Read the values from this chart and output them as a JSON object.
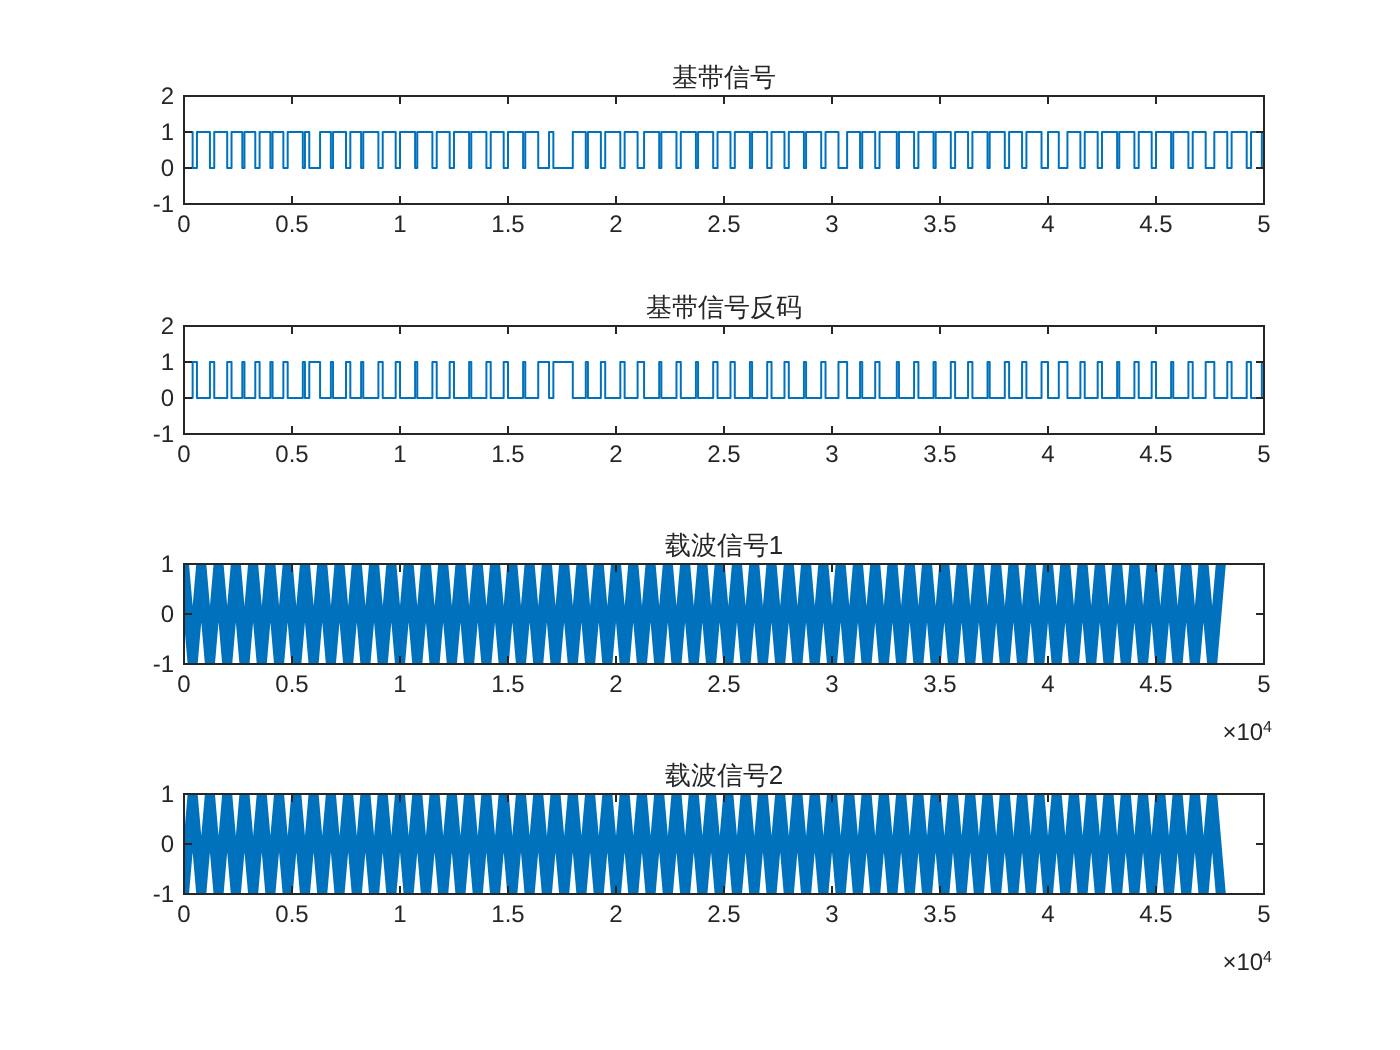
{
  "chart_data": [
    {
      "type": "step",
      "title": "基带信号",
      "xlim": [
        0,
        5
      ],
      "ylim": [
        -1,
        2
      ],
      "xticks": [
        0,
        0.5,
        1,
        1.5,
        2,
        2.5,
        3,
        3.5,
        4,
        4.5,
        5
      ],
      "yticks": [
        -1,
        0,
        1,
        2
      ],
      "x": [
        0,
        0.04,
        0.06,
        0.12,
        0.14,
        0.2,
        0.22,
        0.27,
        0.28,
        0.33,
        0.35,
        0.4,
        0.41,
        0.46,
        0.48,
        0.55,
        0.56,
        0.58,
        0.63,
        0.68,
        0.69,
        0.75,
        0.77,
        0.82,
        0.83,
        0.9,
        0.92,
        0.98,
        1.0,
        1.07,
        1.08,
        1.15,
        1.17,
        1.23,
        1.25,
        1.32,
        1.33,
        1.4,
        1.42,
        1.48,
        1.5,
        1.57,
        1.58,
        1.64,
        1.69,
        1.71,
        1.8,
        1.86,
        1.87,
        1.93,
        1.95,
        2.02,
        2.04,
        2.1,
        2.13,
        2.2,
        2.21,
        2.28,
        2.3,
        2.37,
        2.38,
        2.45,
        2.47,
        2.53,
        2.55,
        2.62,
        2.63,
        2.7,
        2.72,
        2.78,
        2.8,
        2.87,
        2.88,
        2.95,
        2.97,
        3.03,
        3.07,
        3.13,
        3.14,
        3.2,
        3.22,
        3.3,
        3.31,
        3.38,
        3.4,
        3.47,
        3.48,
        3.55,
        3.57,
        3.63,
        3.65,
        3.72,
        3.73,
        3.8,
        3.82,
        3.88,
        3.9,
        3.97,
        4.0,
        4.05,
        4.09,
        4.15,
        4.17,
        4.23,
        4.25,
        4.32,
        4.33,
        4.4,
        4.42,
        4.48,
        4.5,
        4.57,
        4.58,
        4.65,
        4.67,
        4.73,
        4.77,
        4.83,
        4.85,
        4.92,
        4.94,
        4.99,
        5
      ],
      "series": [
        {
          "color": "#0072bd",
          "values": [
            1,
            0,
            1,
            0,
            1,
            0,
            1,
            0,
            1,
            0,
            1,
            0,
            1,
            0,
            1,
            0,
            1,
            0,
            1,
            0,
            1,
            0,
            1,
            0,
            1,
            0,
            1,
            0,
            1,
            0,
            1,
            0,
            1,
            0,
            1,
            0,
            1,
            0,
            1,
            0,
            1,
            0,
            1,
            0,
            1,
            0,
            1,
            0,
            1,
            0,
            1,
            0,
            1,
            0,
            1,
            0,
            1,
            0,
            1,
            0,
            1,
            0,
            1,
            0,
            1,
            0,
            1,
            0,
            1,
            0,
            1,
            0,
            1,
            0,
            1,
            0,
            1,
            0,
            1,
            0,
            1,
            0,
            1,
            0,
            1,
            0,
            1,
            0,
            1,
            0,
            1,
            0,
            1,
            0,
            1,
            0,
            1,
            0,
            1,
            0,
            1,
            0,
            1,
            0,
            1,
            0,
            1,
            0,
            1,
            0,
            1,
            0,
            1,
            0,
            1,
            0,
            1,
            0,
            1,
            0,
            1,
            0,
            0
          ]
        }
      ]
    },
    {
      "type": "step",
      "title": "基带信号反码",
      "xlim": [
        0,
        5
      ],
      "ylim": [
        -1,
        2
      ],
      "xticks": [
        0,
        0.5,
        1,
        1.5,
        2,
        2.5,
        3,
        3.5,
        4,
        4.5,
        5
      ],
      "yticks": [
        -1,
        0,
        1,
        2
      ],
      "x": [
        0,
        0.04,
        0.06,
        0.12,
        0.14,
        0.2,
        0.22,
        0.27,
        0.28,
        0.33,
        0.35,
        0.4,
        0.41,
        0.46,
        0.48,
        0.55,
        0.56,
        0.58,
        0.63,
        0.68,
        0.69,
        0.75,
        0.77,
        0.82,
        0.83,
        0.9,
        0.92,
        0.98,
        1.0,
        1.07,
        1.08,
        1.15,
        1.17,
        1.23,
        1.25,
        1.32,
        1.33,
        1.4,
        1.42,
        1.48,
        1.5,
        1.57,
        1.58,
        1.64,
        1.69,
        1.71,
        1.8,
        1.86,
        1.87,
        1.93,
        1.95,
        2.02,
        2.04,
        2.1,
        2.13,
        2.2,
        2.21,
        2.28,
        2.3,
        2.37,
        2.38,
        2.45,
        2.47,
        2.53,
        2.55,
        2.62,
        2.63,
        2.7,
        2.72,
        2.78,
        2.8,
        2.87,
        2.88,
        2.95,
        2.97,
        3.03,
        3.07,
        3.13,
        3.14,
        3.2,
        3.22,
        3.3,
        3.31,
        3.38,
        3.4,
        3.47,
        3.48,
        3.55,
        3.57,
        3.63,
        3.65,
        3.72,
        3.73,
        3.8,
        3.82,
        3.88,
        3.9,
        3.97,
        4.0,
        4.05,
        4.09,
        4.15,
        4.17,
        4.23,
        4.25,
        4.32,
        4.33,
        4.4,
        4.42,
        4.48,
        4.5,
        4.57,
        4.58,
        4.65,
        4.67,
        4.73,
        4.77,
        4.83,
        4.85,
        4.92,
        4.94,
        4.99,
        5
      ],
      "series": [
        {
          "color": "#0072bd",
          "values": [
            0,
            1,
            0,
            1,
            0,
            1,
            0,
            1,
            0,
            1,
            0,
            1,
            0,
            1,
            0,
            1,
            0,
            1,
            0,
            1,
            0,
            1,
            0,
            1,
            0,
            1,
            0,
            1,
            0,
            1,
            0,
            1,
            0,
            1,
            0,
            1,
            0,
            1,
            0,
            1,
            0,
            1,
            0,
            1,
            0,
            1,
            0,
            1,
            0,
            1,
            0,
            1,
            0,
            1,
            0,
            1,
            0,
            1,
            0,
            1,
            0,
            1,
            0,
            1,
            0,
            1,
            0,
            1,
            0,
            1,
            0,
            1,
            0,
            1,
            0,
            1,
            0,
            1,
            0,
            1,
            0,
            1,
            0,
            1,
            0,
            1,
            0,
            1,
            0,
            1,
            0,
            1,
            0,
            1,
            0,
            1,
            0,
            1,
            0,
            1,
            0,
            1,
            0,
            1,
            0,
            1,
            0,
            1,
            0,
            1,
            0,
            1,
            0,
            1,
            0,
            1,
            0,
            1,
            0,
            1,
            0,
            1,
            1
          ]
        }
      ]
    },
    {
      "type": "line",
      "title": "载波信号1",
      "xlim": [
        0,
        5
      ],
      "ylim": [
        -1,
        1
      ],
      "xticks": [
        0,
        0.5,
        1,
        1.5,
        2,
        2.5,
        3,
        3.5,
        4,
        4.5,
        5
      ],
      "yticks": [
        -1,
        0,
        1
      ],
      "annotations": [
        "×10$^{4}$"
      ],
      "x": [
        0,
        0.04,
        0.08,
        0.12,
        0.16,
        0.2,
        0.24,
        0.28,
        0.32,
        0.36,
        0.4,
        0.44,
        0.48,
        0.52,
        0.56,
        0.6,
        0.64,
        0.68,
        0.72,
        0.76,
        0.8,
        0.84,
        0.88,
        0.92,
        0.96,
        1.0,
        1.04,
        1.08,
        1.12,
        1.16,
        1.2,
        1.24,
        1.28,
        1.32,
        1.36,
        1.4,
        1.44,
        1.48,
        1.52,
        1.56,
        1.6,
        1.64,
        1.68,
        1.72,
        1.76,
        1.8,
        1.84,
        1.88,
        1.92,
        1.96,
        2.0,
        2.04,
        2.08,
        2.12,
        2.16,
        2.2,
        2.24,
        2.28,
        2.32,
        2.36,
        2.4,
        2.44,
        2.48,
        2.52,
        2.56,
        2.6,
        2.64,
        2.68,
        2.72,
        2.76,
        2.8,
        2.84,
        2.88,
        2.92,
        2.96,
        3.0,
        3.04,
        3.08,
        3.12,
        3.16,
        3.2,
        3.24,
        3.28,
        3.32,
        3.36,
        3.4,
        3.44,
        3.48,
        3.52,
        3.56,
        3.6,
        3.64,
        3.68,
        3.72,
        3.76,
        3.8,
        3.84,
        3.88,
        3.92,
        3.96,
        4.0,
        4.04,
        4.08,
        4.12,
        4.16,
        4.2,
        4.24,
        4.28,
        4.32,
        4.36,
        4.4,
        4.44,
        4.48,
        4.52,
        4.56,
        4.6,
        4.64,
        4.68,
        4.72,
        4.76,
        4.8
      ],
      "series": [
        {
          "color": "#0072bd",
          "values": [
            1,
            -1,
            1,
            -1,
            1,
            -1,
            1,
            -1,
            1,
            -1,
            1,
            -1,
            1,
            -1,
            1,
            -1,
            1,
            -1,
            1,
            -1,
            1,
            -1,
            1,
            -1,
            1,
            -1,
            1,
            -1,
            1,
            -1,
            1,
            -1,
            1,
            -1,
            1,
            -1,
            1,
            -1,
            1,
            -1,
            1,
            -1,
            1,
            -1,
            1,
            -1,
            1,
            -1,
            1,
            -1,
            1,
            -1,
            1,
            -1,
            1,
            -1,
            1,
            -1,
            1,
            -1,
            1,
            -1,
            1,
            -1,
            1,
            -1,
            1,
            -1,
            1,
            -1,
            1,
            -1,
            1,
            -1,
            1,
            -1,
            1,
            -1,
            1,
            -1,
            1,
            -1,
            1,
            -1,
            1,
            -1,
            1,
            -1,
            1,
            -1,
            1,
            -1,
            1,
            -1,
            1,
            -1,
            1,
            -1,
            1,
            -1,
            1,
            -1,
            1,
            -1,
            1,
            -1,
            1,
            -1,
            1,
            -1,
            1,
            -1,
            1,
            -1,
            1,
            -1,
            1,
            -1,
            1,
            -1,
            1
          ]
        }
      ]
    },
    {
      "type": "line",
      "title": "载波信号2",
      "xlim": [
        0,
        5
      ],
      "ylim": [
        -1,
        1
      ],
      "xticks": [
        0,
        0.5,
        1,
        1.5,
        2,
        2.5,
        3,
        3.5,
        4,
        4.5,
        5
      ],
      "yticks": [
        -1,
        0,
        1
      ],
      "annotations": [
        "×10$^{4}$"
      ],
      "x": [
        0,
        0.04,
        0.08,
        0.12,
        0.16,
        0.2,
        0.24,
        0.28,
        0.32,
        0.36,
        0.4,
        0.44,
        0.48,
        0.52,
        0.56,
        0.6,
        0.64,
        0.68,
        0.72,
        0.76,
        0.8,
        0.84,
        0.88,
        0.92,
        0.96,
        1.0,
        1.04,
        1.08,
        1.12,
        1.16,
        1.2,
        1.24,
        1.28,
        1.32,
        1.36,
        1.4,
        1.44,
        1.48,
        1.52,
        1.56,
        1.6,
        1.64,
        1.68,
        1.72,
        1.76,
        1.8,
        1.84,
        1.88,
        1.92,
        1.96,
        2.0,
        2.04,
        2.08,
        2.12,
        2.16,
        2.2,
        2.24,
        2.28,
        2.32,
        2.36,
        2.4,
        2.44,
        2.48,
        2.52,
        2.56,
        2.6,
        2.64,
        2.68,
        2.72,
        2.76,
        2.8,
        2.84,
        2.88,
        2.92,
        2.96,
        3.0,
        3.04,
        3.08,
        3.12,
        3.16,
        3.2,
        3.24,
        3.28,
        3.32,
        3.36,
        3.4,
        3.44,
        3.48,
        3.52,
        3.56,
        3.6,
        3.64,
        3.68,
        3.72,
        3.76,
        3.8,
        3.84,
        3.88,
        3.92,
        3.96,
        4.0,
        4.04,
        4.08,
        4.12,
        4.16,
        4.2,
        4.24,
        4.28,
        4.32,
        4.36,
        4.4,
        4.44,
        4.48,
        4.52,
        4.56,
        4.6,
        4.64,
        4.68,
        4.72,
        4.76,
        4.8
      ],
      "series": [
        {
          "color": "#0072bd",
          "values": [
            -1,
            1,
            -1,
            1,
            -1,
            1,
            -1,
            1,
            -1,
            1,
            -1,
            1,
            -1,
            1,
            -1,
            1,
            -1,
            1,
            -1,
            1,
            -1,
            1,
            -1,
            1,
            -1,
            1,
            -1,
            1,
            -1,
            1,
            -1,
            1,
            -1,
            1,
            -1,
            1,
            -1,
            1,
            -1,
            1,
            -1,
            1,
            -1,
            1,
            -1,
            1,
            -1,
            1,
            -1,
            1,
            -1,
            1,
            -1,
            1,
            -1,
            1,
            -1,
            1,
            -1,
            1,
            -1,
            1,
            -1,
            1,
            -1,
            1,
            -1,
            1,
            -1,
            1,
            -1,
            1,
            -1,
            1,
            -1,
            1,
            -1,
            1,
            -1,
            1,
            -1,
            1,
            -1,
            1,
            -1,
            1,
            -1,
            1,
            -1,
            1,
            -1,
            1,
            -1,
            1,
            -1,
            1,
            -1,
            1,
            -1,
            1,
            -1,
            1,
            -1,
            1,
            -1,
            1,
            -1,
            1,
            -1,
            1,
            -1,
            1,
            -1,
            1,
            -1,
            1,
            -1,
            1,
            -1,
            1,
            -1
          ]
        }
      ]
    }
  ]
}
